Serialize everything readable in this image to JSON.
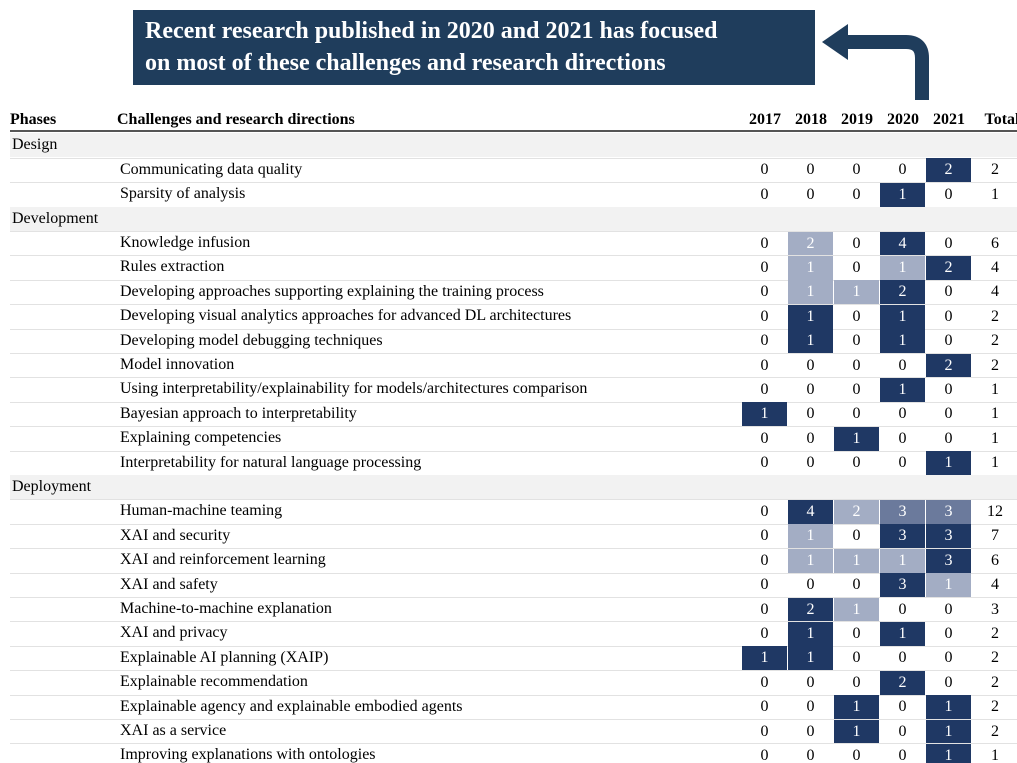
{
  "callout": {
    "lines": [
      "Recent research published in 2020 and 2021 has focused",
      "on most of these challenges and research directions"
    ]
  },
  "table": {
    "headers": [
      "Phases",
      "Challenges and research directions",
      "2017",
      "2018",
      "2019",
      "2020",
      "2021",
      "Total"
    ],
    "colors": {
      "dark": "#1f3864",
      "mid": "#6b7a9c",
      "light": "#a3adc4"
    },
    "phases": [
      {
        "name": "Design",
        "rows": [
          {
            "label": "Communicating data quality",
            "values": [
              0,
              0,
              0,
              0,
              2,
              2
            ],
            "shading": [
              null,
              null,
              null,
              null,
              "dark",
              null
            ]
          },
          {
            "label": "Sparsity of analysis",
            "values": [
              0,
              0,
              0,
              1,
              0,
              1
            ],
            "shading": [
              null,
              null,
              null,
              "dark",
              null,
              null
            ]
          }
        ]
      },
      {
        "name": "Development",
        "rows": [
          {
            "label": "Knowledge infusion",
            "values": [
              0,
              2,
              0,
              4,
              0,
              6
            ],
            "shading": [
              null,
              "light",
              null,
              "dark",
              null,
              null
            ]
          },
          {
            "label": "Rules extraction",
            "values": [
              0,
              1,
              0,
              1,
              2,
              4
            ],
            "shading": [
              null,
              "light",
              null,
              "light",
              "dark",
              null
            ]
          },
          {
            "label": "Developing approaches supporting explaining the training process",
            "values": [
              0,
              1,
              1,
              2,
              0,
              4
            ],
            "shading": [
              null,
              "light",
              "light",
              "dark",
              null,
              null
            ]
          },
          {
            "label": "Developing visual analytics approaches for advanced DL architectures",
            "values": [
              0,
              1,
              0,
              1,
              0,
              2
            ],
            "shading": [
              null,
              "dark",
              null,
              "dark",
              null,
              null
            ]
          },
          {
            "label": "Developing model debugging techniques",
            "values": [
              0,
              1,
              0,
              1,
              0,
              2
            ],
            "shading": [
              null,
              "dark",
              null,
              "dark",
              null,
              null
            ]
          },
          {
            "label": "Model innovation",
            "values": [
              0,
              0,
              0,
              0,
              2,
              2
            ],
            "shading": [
              null,
              null,
              null,
              null,
              "dark",
              null
            ]
          },
          {
            "label": "Using interpretability/explainability for models/architectures comparison",
            "values": [
              0,
              0,
              0,
              1,
              0,
              1
            ],
            "shading": [
              null,
              null,
              null,
              "dark",
              null,
              null
            ]
          },
          {
            "label": "Bayesian approach to interpretability",
            "values": [
              1,
              0,
              0,
              0,
              0,
              1
            ],
            "shading": [
              "dark",
              null,
              null,
              null,
              null,
              null
            ]
          },
          {
            "label": "Explaining competencies",
            "values": [
              0,
              0,
              1,
              0,
              0,
              1
            ],
            "shading": [
              null,
              null,
              "dark",
              null,
              null,
              null
            ]
          },
          {
            "label": "Interpretability for natural language processing",
            "values": [
              0,
              0,
              0,
              0,
              1,
              1
            ],
            "shading": [
              null,
              null,
              null,
              null,
              "dark",
              null
            ]
          }
        ]
      },
      {
        "name": "Deployment",
        "rows": [
          {
            "label": "Human-machine teaming",
            "values": [
              0,
              4,
              2,
              3,
              3,
              12
            ],
            "shading": [
              null,
              "dark",
              "light",
              "mid",
              "mid",
              null
            ]
          },
          {
            "label": "XAI and security",
            "values": [
              0,
              1,
              0,
              3,
              3,
              7
            ],
            "shading": [
              null,
              "light",
              null,
              "dark",
              "dark",
              null
            ]
          },
          {
            "label": "XAI and reinforcement learning",
            "values": [
              0,
              1,
              1,
              1,
              3,
              6
            ],
            "shading": [
              null,
              "light",
              "light",
              "light",
              "dark",
              null
            ]
          },
          {
            "label": "XAI and safety",
            "values": [
              0,
              0,
              0,
              3,
              1,
              4
            ],
            "shading": [
              null,
              null,
              null,
              "dark",
              "light",
              null
            ]
          },
          {
            "label": "Machine-to-machine explanation",
            "values": [
              0,
              2,
              1,
              0,
              0,
              3
            ],
            "shading": [
              null,
              "dark",
              "light",
              null,
              null,
              null
            ]
          },
          {
            "label": "XAI and privacy",
            "values": [
              0,
              1,
              0,
              1,
              0,
              2
            ],
            "shading": [
              null,
              "dark",
              null,
              "dark",
              null,
              null
            ]
          },
          {
            "label": "Explainable AI planning (XAIP)",
            "values": [
              1,
              1,
              0,
              0,
              0,
              2
            ],
            "shading": [
              "dark",
              "dark",
              null,
              null,
              null,
              null
            ]
          },
          {
            "label": "Explainable recommendation",
            "values": [
              0,
              0,
              0,
              2,
              0,
              2
            ],
            "shading": [
              null,
              null,
              null,
              "dark",
              null,
              null
            ]
          },
          {
            "label": "Explainable agency and explainable embodied agents",
            "values": [
              0,
              0,
              1,
              0,
              1,
              2
            ],
            "shading": [
              null,
              null,
              "dark",
              null,
              "dark",
              null
            ]
          },
          {
            "label": "XAI as a service",
            "values": [
              0,
              0,
              1,
              0,
              1,
              2
            ],
            "shading": [
              null,
              null,
              "dark",
              null,
              "dark",
              null
            ]
          },
          {
            "label": "Improving explanations with ontologies",
            "values": [
              0,
              0,
              0,
              0,
              1,
              1
            ],
            "shading": [
              null,
              null,
              null,
              null,
              "dark",
              null
            ]
          }
        ]
      }
    ]
  }
}
